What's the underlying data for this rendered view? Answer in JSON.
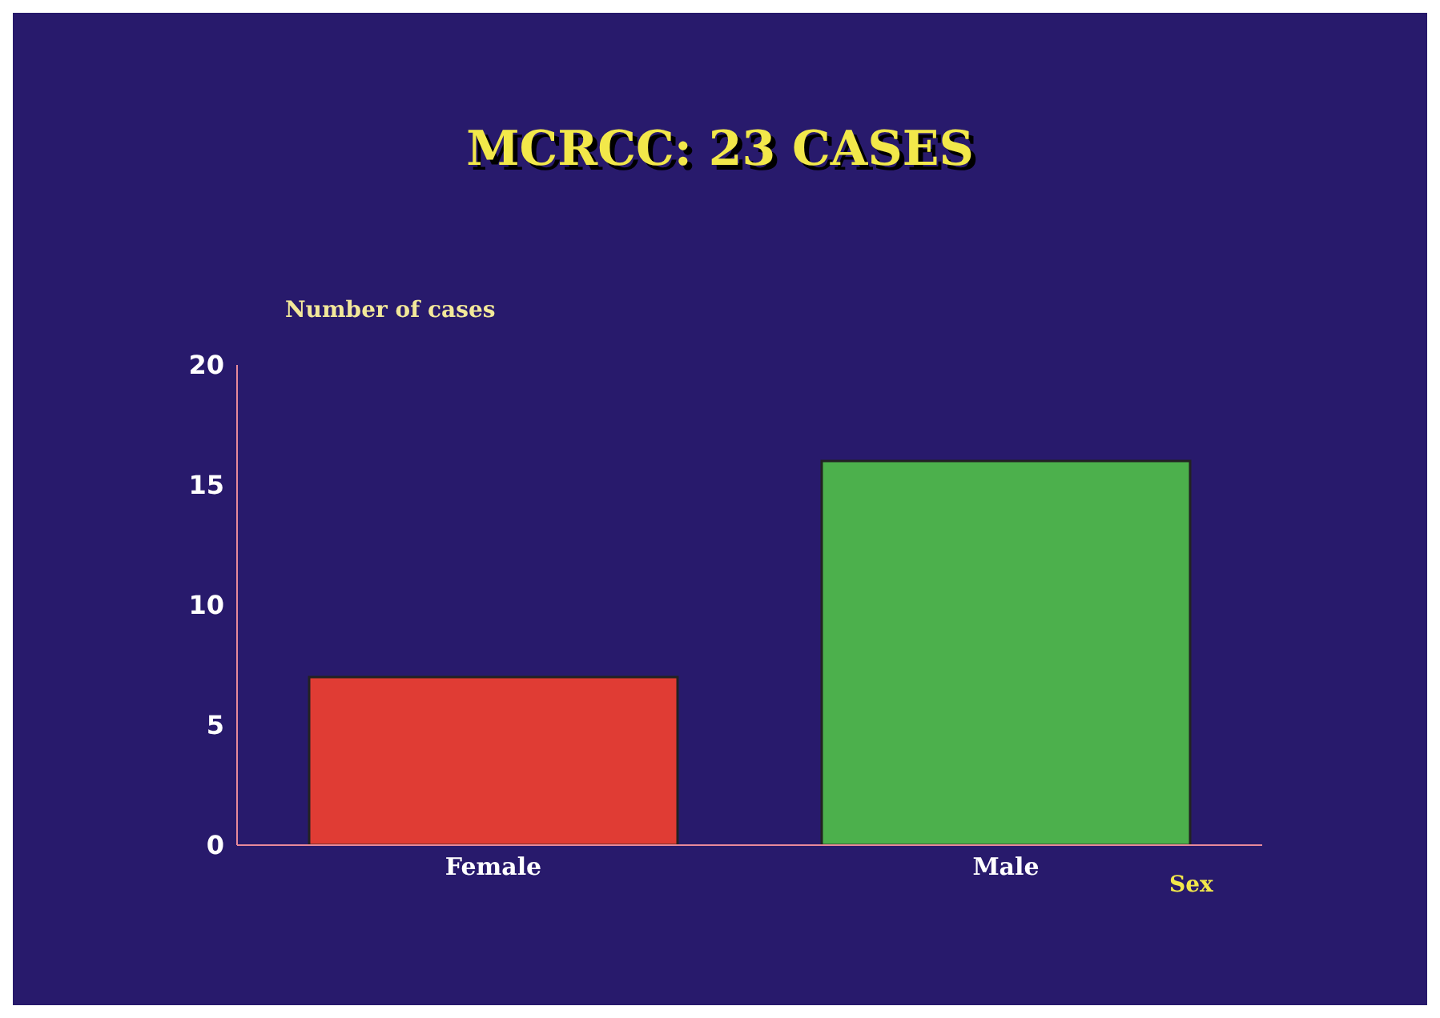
{
  "chart_data": {
    "type": "bar",
    "title": "MCRCC: 23 CASES",
    "xlabel": "Sex",
    "ylabel": "Number of cases",
    "categories": [
      "Female",
      "Male"
    ],
    "values": [
      7,
      16
    ],
    "colors": [
      "#e03c34",
      "#4cb04c"
    ],
    "ylim": [
      0,
      20
    ],
    "yticks": [
      0,
      5,
      10,
      15,
      20
    ],
    "grid": false
  }
}
